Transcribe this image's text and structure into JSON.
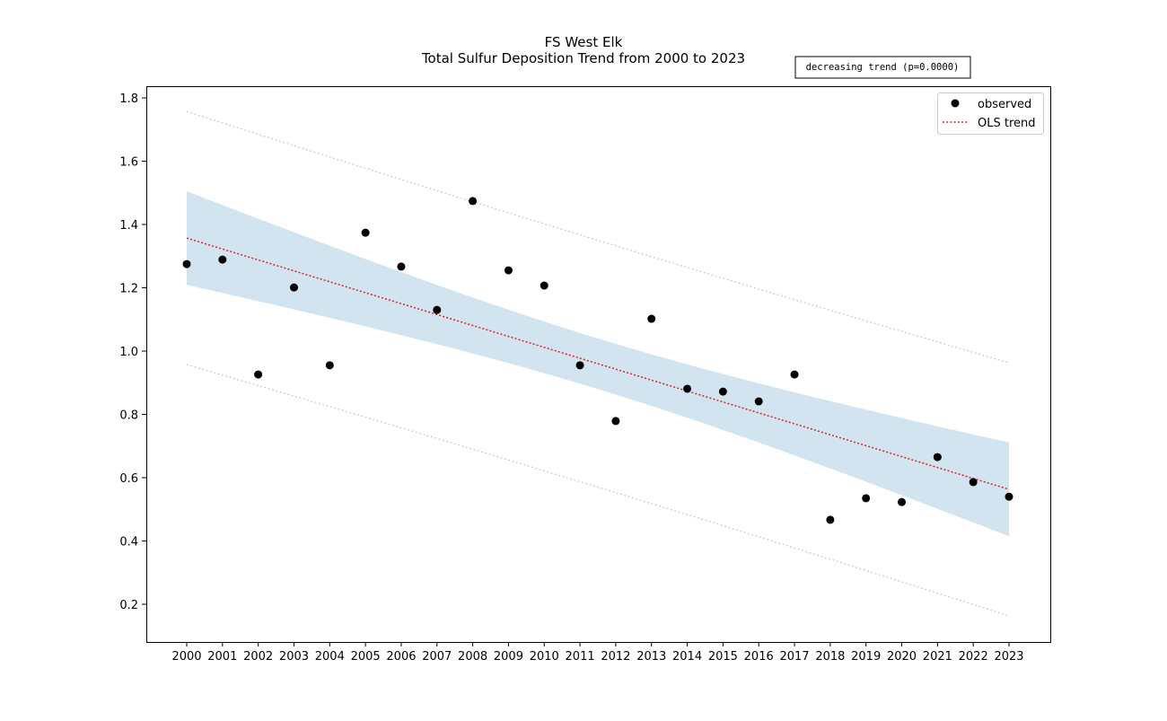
{
  "chart_data": {
    "type": "scatter",
    "title": "FS West Elk",
    "subtitle": "Total Sulfur Deposition Trend from 2000 to 2023",
    "annotation": "decreasing trend (p=0.0000)",
    "xlabel": "",
    "ylabel": "",
    "x": [
      2000,
      2001,
      2002,
      2003,
      2004,
      2005,
      2006,
      2007,
      2008,
      2009,
      2010,
      2011,
      2012,
      2013,
      2014,
      2015,
      2016,
      2017,
      2018,
      2019,
      2020,
      2021,
      2022,
      2023
    ],
    "observed": [
      1.275,
      1.289,
      0.926,
      1.201,
      0.955,
      1.374,
      1.267,
      1.13,
      1.474,
      1.255,
      1.207,
      0.955,
      0.779,
      1.102,
      0.881,
      0.872,
      0.841,
      0.926,
      0.467,
      0.535,
      0.523,
      0.665,
      0.586,
      0.54
    ],
    "trend": {
      "start": 1.357,
      "end": 0.563
    },
    "confidence_band_halfwidth": {
      "center": 0.08,
      "ends": 0.148
    },
    "prediction_band_halfwidth": {
      "center": 0.39,
      "ends": 0.4
    },
    "ylim": [
      0.085,
      1.835
    ],
    "yticks": [
      0.2,
      0.4,
      0.6,
      0.8,
      1.0,
      1.2,
      1.4,
      1.6,
      1.8
    ],
    "legend": {
      "position": "top-right",
      "entries": [
        "observed",
        "OLS trend"
      ]
    },
    "colors": {
      "observed": "#000000",
      "trend": "#d62728",
      "band": "#1f77b4",
      "prediction": "#cccccc"
    }
  }
}
